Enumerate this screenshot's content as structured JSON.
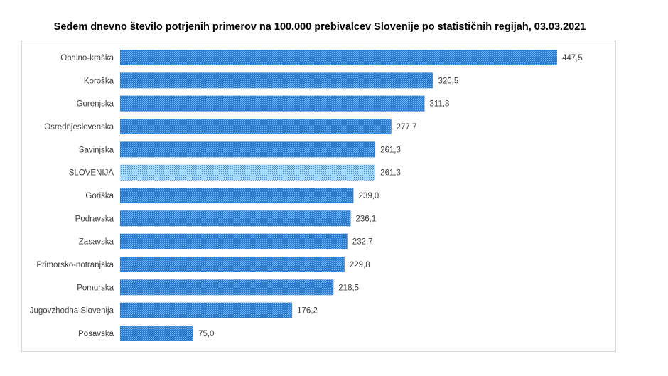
{
  "chart_data": {
    "type": "bar",
    "orientation": "horizontal",
    "title": "Sedem dnevno število potrjenih primerov na 100.000 prebivalcev Slovenije po statističnih regijah, 03.03.2021",
    "categories": [
      "Obalno-kraška",
      "Koroška",
      "Gorenjska",
      "Osrednjeslovenska",
      "Savinjska",
      "SLOVENIJA",
      "Goriška",
      "Podravska",
      "Zasavska",
      "Primorsko-notranjska",
      "Pomurska",
      "Jugovzhodna Slovenija",
      "Posavska"
    ],
    "values": [
      447.5,
      320.5,
      311.8,
      277.7,
      261.3,
      261.3,
      239.0,
      236.1,
      232.7,
      229.8,
      218.5,
      176.2,
      75.0
    ],
    "data_labels": [
      "447,5",
      "320,5",
      "311,8",
      "277,7",
      "261,3",
      "261,3",
      "239,0",
      "236,1",
      "232,7",
      "229,8",
      "218,5",
      "176,2",
      "75,0"
    ],
    "highlight_category": "SLOVENIJA",
    "xlim": [
      0,
      447.5
    ],
    "grid": false,
    "legend": "none",
    "colors": {
      "bar": "#2f7fd3",
      "bar_pattern": "#6fb2ef",
      "highlight": "#9fd2f5",
      "highlight_pattern": "#3f93dc"
    }
  }
}
